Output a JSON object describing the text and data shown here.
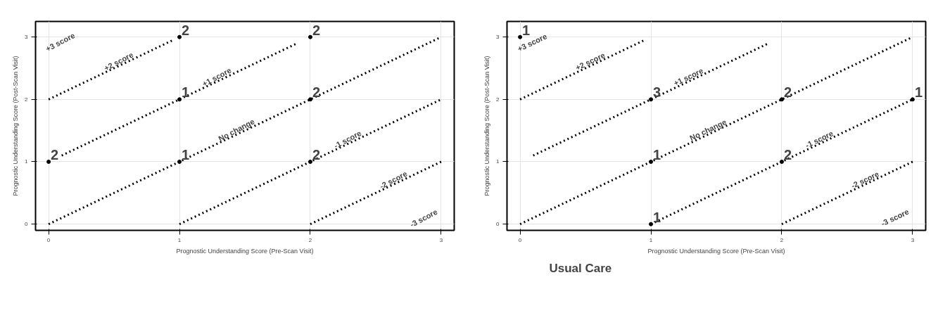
{
  "chart_data": [
    {
      "type": "scatter",
      "title": null,
      "xlabel": "Prognostic Understanding Score (Pre-Scan Visit)",
      "ylabel": "Prognostic Understanding Score (Post-Scan Visit)",
      "xlim": [
        -0.1,
        3.1
      ],
      "ylim": [
        -0.1,
        3.25
      ],
      "xticks": [
        0,
        1,
        2,
        3
      ],
      "yticks": [
        0,
        1,
        2,
        3
      ],
      "grid": true,
      "series": [
        {
          "type": "line",
          "color": "#000000",
          "line_style": "dotted",
          "x": [
            0,
            0.95
          ],
          "values": [
            2,
            2.95
          ]
        },
        {
          "type": "line",
          "color": "#000000",
          "line_style": "dotted",
          "x": [
            0.1,
            1.9
          ],
          "values": [
            1.1,
            2.9
          ]
        },
        {
          "type": "line",
          "color": "#000000",
          "line_style": "dotted",
          "x": [
            0,
            3
          ],
          "values": [
            0,
            3
          ]
        },
        {
          "type": "line",
          "color": "#000000",
          "line_style": "dotted",
          "x": [
            1,
            3
          ],
          "values": [
            0,
            2
          ]
        },
        {
          "type": "line",
          "color": "#000000",
          "line_style": "dotted",
          "x": [
            2,
            3
          ],
          "values": [
            0,
            1
          ]
        },
        {
          "color": "#000000",
          "marker": "circle",
          "x": [
            1,
            2,
            1,
            2,
            0,
            1,
            2
          ],
          "values": [
            3,
            3,
            2,
            2,
            1,
            1,
            1
          ]
        }
      ],
      "annotations": [
        "+3 score",
        "-3 score",
        {
          "text": "2",
          "x": 1,
          "y": 3
        },
        {
          "text": "2",
          "x": 2,
          "y": 3
        },
        {
          "text": "1",
          "x": 1,
          "y": 2
        },
        {
          "text": "2",
          "x": 2,
          "y": 2
        },
        {
          "text": "2",
          "x": 0,
          "y": 1
        },
        {
          "text": "1",
          "x": 1,
          "y": 1
        },
        {
          "text": "2",
          "x": 2,
          "y": 1
        },
        {
          "text": "+2 score",
          "x": 0.55,
          "y": 2.55
        },
        {
          "text": "+1 score",
          "x": 1.3,
          "y": 2.3
        },
        {
          "text": "No change",
          "x": 1.45,
          "y": 1.45
        },
        {
          "text": "-1 score",
          "x": 2.3,
          "y": 1.3
        },
        {
          "text": "-2 score",
          "x": 2.65,
          "y": 0.65
        }
      ]
    },
    {
      "type": "scatter",
      "title": "Usual Care",
      "xlabel": "Prognostic Understanding Score (Pre-Scan Visit)",
      "ylabel": "Prognostic Understanding Score (Post-Scan Visit)",
      "xlim": [
        -0.1,
        3.1
      ],
      "ylim": [
        -0.1,
        3.25
      ],
      "xticks": [
        0,
        1,
        2,
        3
      ],
      "yticks": [
        0,
        1,
        2,
        3
      ],
      "grid": true,
      "series": [
        {
          "type": "line",
          "color": "#000000",
          "line_style": "dotted",
          "x": [
            0,
            0.95
          ],
          "values": [
            2,
            2.95
          ]
        },
        {
          "type": "line",
          "color": "#000000",
          "line_style": "dotted",
          "x": [
            0.1,
            1.9
          ],
          "values": [
            1.1,
            2.9
          ]
        },
        {
          "type": "line",
          "color": "#000000",
          "line_style": "dotted",
          "x": [
            0,
            3
          ],
          "values": [
            0,
            3
          ]
        },
        {
          "type": "line",
          "color": "#000000",
          "line_style": "dotted",
          "x": [
            1,
            3
          ],
          "values": [
            0,
            2
          ]
        },
        {
          "type": "line",
          "color": "#000000",
          "line_style": "dotted",
          "x": [
            2,
            3
          ],
          "values": [
            0,
            1
          ]
        },
        {
          "color": "#000000",
          "marker": "circle",
          "x": [
            0,
            1,
            2,
            3,
            1,
            2,
            1
          ],
          "values": [
            3,
            2,
            2,
            2,
            1,
            1,
            0
          ]
        }
      ],
      "annotations": [
        "+3 score",
        "-3 score",
        {
          "text": "1",
          "x": 0,
          "y": 3
        },
        {
          "text": "3",
          "x": 1,
          "y": 2
        },
        {
          "text": "2",
          "x": 2,
          "y": 2
        },
        {
          "text": "1",
          "x": 3,
          "y": 2
        },
        {
          "text": "1",
          "x": 1,
          "y": 1
        },
        {
          "text": "2",
          "x": 2,
          "y": 1
        },
        {
          "text": "1",
          "x": 1,
          "y": 0
        },
        {
          "text": "+2 score",
          "x": 0.55,
          "y": 2.55
        },
        {
          "text": "+1 score",
          "x": 1.3,
          "y": 2.3
        },
        {
          "text": "No change",
          "x": 1.45,
          "y": 1.45
        },
        {
          "text": "-1 score",
          "x": 2.3,
          "y": 1.3
        },
        {
          "text": "-2 score",
          "x": 2.65,
          "y": 0.65
        }
      ]
    }
  ]
}
